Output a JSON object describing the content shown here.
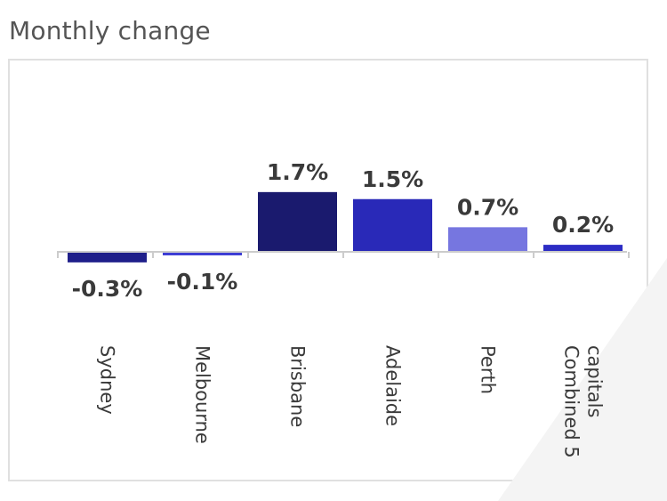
{
  "chart_data": {
    "type": "bar",
    "title": "Monthly change",
    "categories": [
      "Sydney",
      "Melbourne",
      "Brisbane",
      "Adelaide",
      "Perth",
      "Combined 5 capitals"
    ],
    "category_lines": [
      [
        "Sydney"
      ],
      [
        "Melbourne"
      ],
      [
        "Brisbane"
      ],
      [
        "Adelaide"
      ],
      [
        "Perth"
      ],
      [
        "Combined 5",
        "capitals"
      ]
    ],
    "values": [
      -0.3,
      -0.1,
      1.7,
      1.5,
      0.7,
      0.2
    ],
    "value_labels": [
      "-0.3%",
      "-0.1%",
      "1.7%",
      "1.5%",
      "0.7%",
      "0.2%"
    ],
    "colors": [
      "#1f1f8a",
      "#3b3bd4",
      "#1a1a6e",
      "#2929b8",
      "#7676e0",
      "#2c2cc4"
    ],
    "axis_color": "#cccccc",
    "xlabel": "",
    "ylabel": "",
    "grid": false,
    "legend": "none"
  }
}
